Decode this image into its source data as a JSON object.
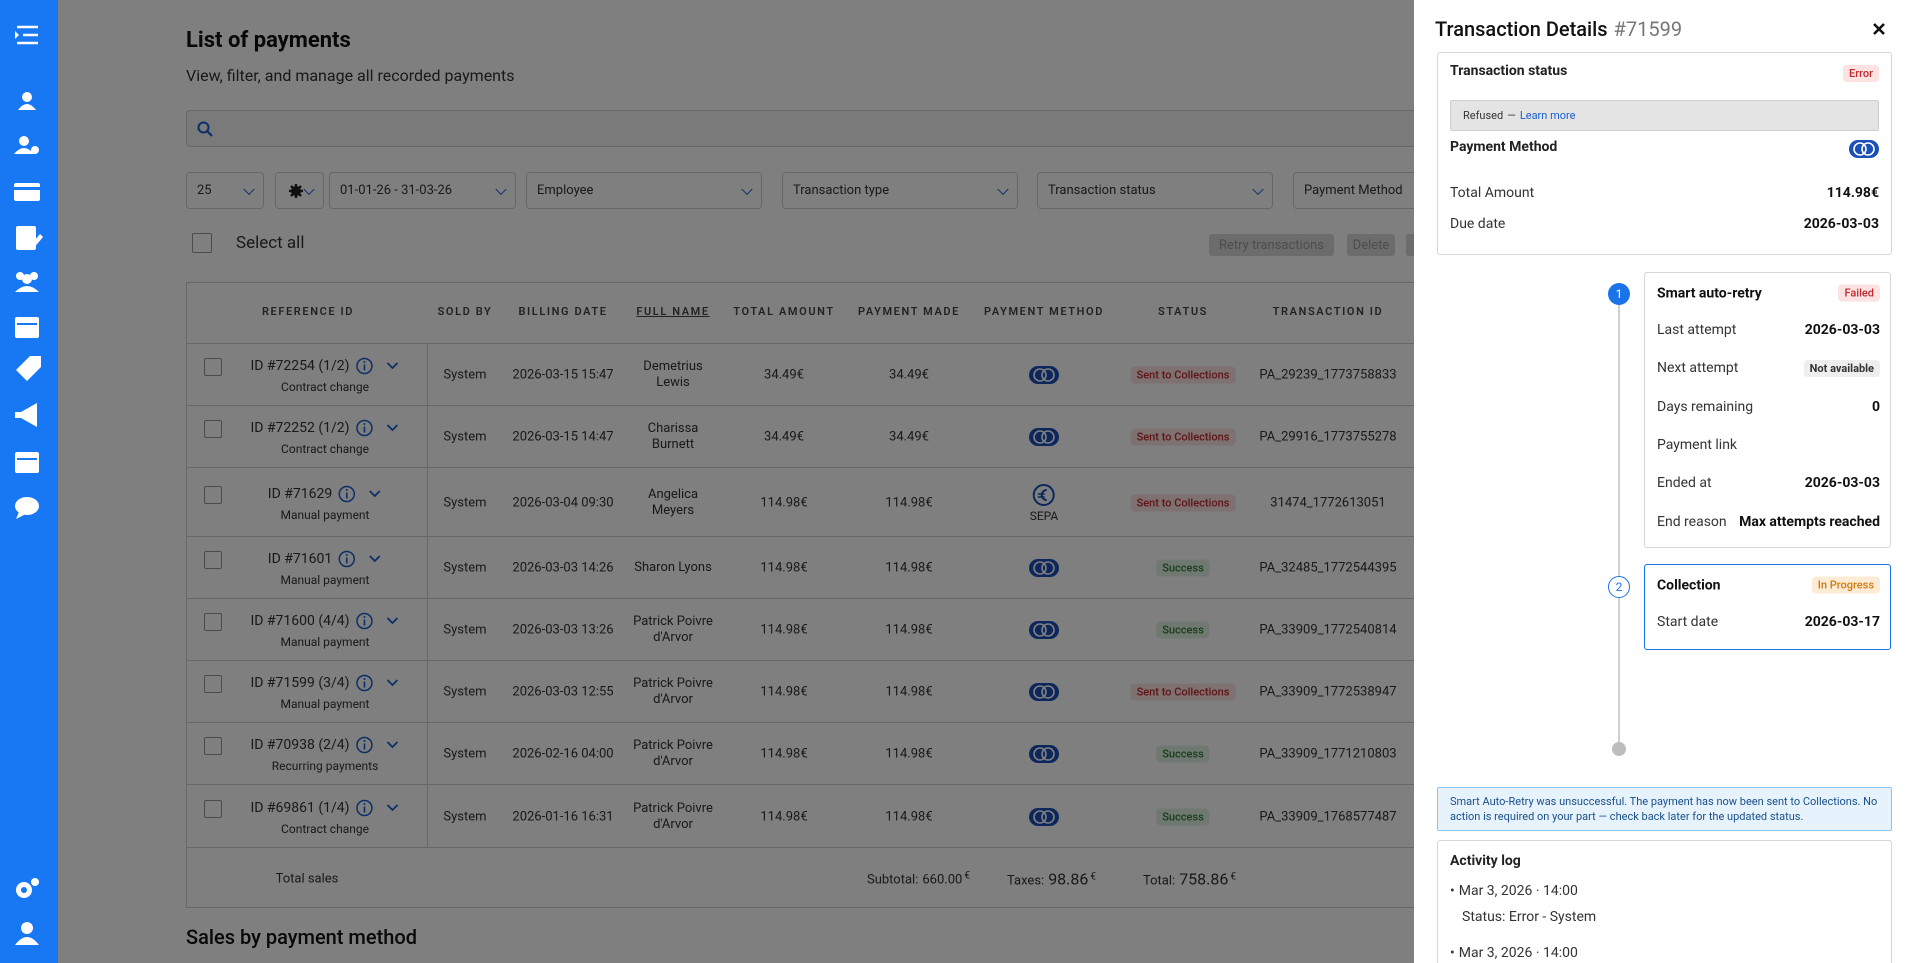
{
  "header": {
    "title": "List of payments",
    "subtitle": "View, filter, and manage all recorded payments"
  },
  "filters": {
    "page_size": "25",
    "date_range": "01-01-26 - 31-03-26",
    "employee": "Employee",
    "transaction_type": "Transaction type",
    "transaction_status": "Transaction status",
    "payment_method": "Payment Method"
  },
  "select_all": "Select all",
  "actions": [
    "Retry transactions",
    "Delete"
  ],
  "table": {
    "columns": [
      "REFERENCE ID",
      "SOLD BY",
      "BILLING DATE",
      "FULL NAME",
      "TOTAL AMOUNT",
      "PAYMENT MADE",
      "PAYMENT METHOD",
      "STATUS",
      "TRANSACTION ID"
    ],
    "sorted_by": 3,
    "rows": [
      {
        "reference": "ID #72254 (1/2)",
        "reference_type": "Contract change",
        "sold_by": "System",
        "billing_date": "2026-03-15 15:47",
        "full_name": "Demetrius Lewis",
        "total_amount": "34.49€",
        "payment_made": "34.49€",
        "payment_method": "card",
        "status": "Sent to Collections",
        "status_tone": "error",
        "transaction_id": "PA_29239_1773758833"
      },
      {
        "reference": "ID #72252 (1/2)",
        "reference_type": "Contract change",
        "sold_by": "System",
        "billing_date": "2026-03-15 14:47",
        "full_name": "Charissa Burnett",
        "total_amount": "34.49€",
        "payment_made": "34.49€",
        "payment_method": "card",
        "status": "Sent to Collections",
        "status_tone": "error",
        "transaction_id": "PA_29916_1773755278"
      },
      {
        "reference": "ID #71629",
        "reference_type": "Manual payment",
        "sold_by": "System",
        "billing_date": "2026-03-04 09:30",
        "full_name": "Angelica Meyers",
        "total_amount": "114.98€",
        "payment_made": "114.98€",
        "payment_method": "sepa",
        "payment_method_label": "SEPA",
        "status": "Sent to Collections",
        "status_tone": "error",
        "transaction_id": "31474_1772613051"
      },
      {
        "reference": "ID #71601",
        "reference_type": "Manual payment",
        "sold_by": "System",
        "billing_date": "2026-03-03 14:26",
        "full_name": "Sharon Lyons",
        "total_amount": "114.98€",
        "payment_made": "114.98€",
        "payment_method": "card",
        "status": "Success",
        "status_tone": "success",
        "transaction_id": "PA_32485_1772544395"
      },
      {
        "reference": "ID #71600 (4/4)",
        "reference_type": "Manual payment",
        "sold_by": "System",
        "billing_date": "2026-03-03 13:26",
        "full_name": "Patrick Poivre d'Arvor",
        "total_amount": "114.98€",
        "payment_made": "114.98€",
        "payment_method": "card",
        "status": "Success",
        "status_tone": "success",
        "transaction_id": "PA_33909_1772540814"
      },
      {
        "reference": "ID #71599 (3/4)",
        "reference_type": "Manual payment",
        "sold_by": "System",
        "billing_date": "2026-03-03 12:55",
        "full_name": "Patrick Poivre d'Arvor",
        "total_amount": "114.98€",
        "payment_made": "114.98€",
        "payment_method": "card",
        "status": "Sent to Collections",
        "status_tone": "error",
        "transaction_id": "PA_33909_1772538947"
      },
      {
        "reference": "ID #70938 (2/4)",
        "reference_type": "Recurring payments",
        "sold_by": "System",
        "billing_date": "2026-02-16 04:00",
        "full_name": "Patrick Poivre d'Arvor",
        "total_amount": "114.98€",
        "payment_made": "114.98€",
        "payment_method": "card",
        "status": "Success",
        "status_tone": "success",
        "transaction_id": "PA_33909_1771210803"
      },
      {
        "reference": "ID #69861 (1/4)",
        "reference_type": "Contract change",
        "sold_by": "System",
        "billing_date": "2026-01-16 16:31",
        "full_name": "Patrick Poivre d'Arvor",
        "total_amount": "114.98€",
        "payment_made": "114.98€",
        "payment_method": "card",
        "status": "Success",
        "status_tone": "success",
        "transaction_id": "PA_33909_1768577487"
      }
    ],
    "footer": {
      "label": "Total sales",
      "subtotal_label": "Subtotal:",
      "subtotal": "660.00",
      "taxes_label": "Taxes:",
      "taxes": "98.86",
      "total_label": "Total:",
      "total": "758.86",
      "currency": "€"
    }
  },
  "section_title": "Sales by payment method",
  "panel": {
    "title": "Transaction Details",
    "id": "#71599",
    "status": {
      "label": "Transaction status",
      "badge": "Error",
      "reason": "Refused",
      "separator": "—",
      "link": "Learn more"
    },
    "payment_method": {
      "label": "Payment Method"
    },
    "summary": [
      {
        "label": "Total Amount",
        "value": "114.98€"
      },
      {
        "label": "Due date",
        "value": "2026-03-03"
      }
    ],
    "steps": [
      {
        "number": "1",
        "title": "Smart auto-retry",
        "badge": "Failed",
        "state": "failed",
        "rows": [
          {
            "label": "Last attempt",
            "value": "2026-03-03"
          },
          {
            "label": "Next attempt",
            "badge": "Not available"
          },
          {
            "label": "Days remaining",
            "value": "0"
          },
          {
            "label": "Payment link"
          },
          {
            "label": "Ended at",
            "value": "2026-03-03"
          },
          {
            "label": "End reason",
            "value": "Max attempts reached"
          }
        ]
      },
      {
        "number": "2",
        "title": "Collection",
        "badge": "In Progress",
        "state": "active",
        "rows": [
          {
            "label": "Start date",
            "value": "2026-03-17"
          }
        ]
      }
    ],
    "notice": "Smart Auto-Retry was unsuccessful. The payment has now been sent to Collections. No action is required on your part — check back later for the updated status.",
    "activity_log": {
      "title": "Activity log",
      "entries": [
        {
          "time": "Mar 3, 2026 · 14:00",
          "detail": "Status: Error - System"
        },
        {
          "time": "Mar 3, 2026 · 14:00"
        }
      ]
    }
  }
}
